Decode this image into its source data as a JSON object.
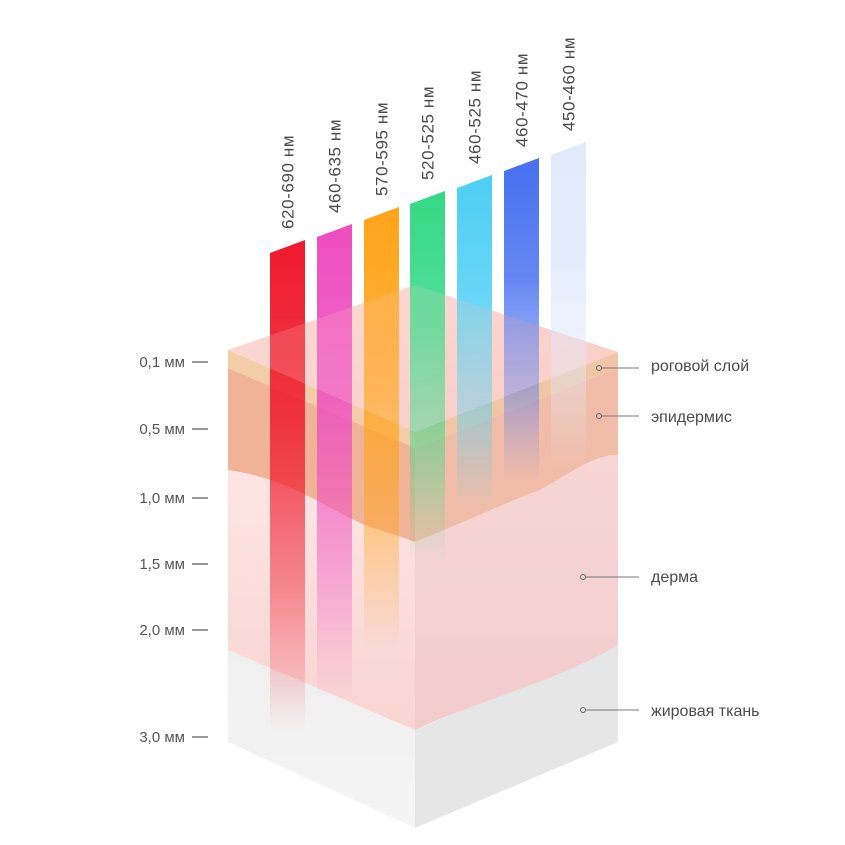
{
  "wavelengths": [
    {
      "label": "620-690 нм",
      "color": "#ee1c2e"
    },
    {
      "label": "460-635 нм",
      "color": "#ee4fc0"
    },
    {
      "label": "570-595 нм",
      "color": "#ffa41c"
    },
    {
      "label": "520-525 нм",
      "color": "#37d987"
    },
    {
      "label": "460-525 нм",
      "color": "#4fcff4"
    },
    {
      "label": "460-470 нм",
      "color": "#4a72f0"
    },
    {
      "label": "450-460 нм",
      "color": "#dde7fa"
    }
  ],
  "depths": [
    "0,1 мм",
    "0,5 мм",
    "1,0 мм",
    "1,5 мм",
    "2,0 мм",
    "3,0 мм"
  ],
  "layers": [
    "роговой слой",
    "эпидермис",
    "дерма",
    "жировая ткань"
  ],
  "colors": {
    "stratum_corneum": "#f3c6a8",
    "epidermis": "#eea784",
    "dermis": "#f7d1d1",
    "fat": "#ececec",
    "text": "#4a4a4a"
  }
}
